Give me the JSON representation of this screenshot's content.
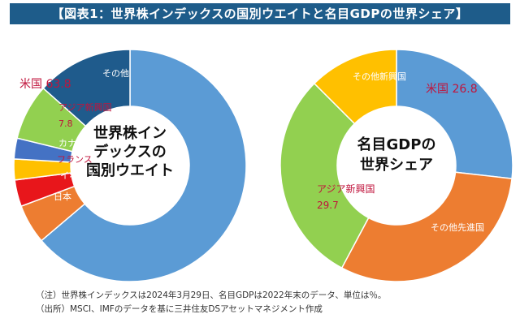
{
  "title": "【図表1：世界株インデックスの国別ウエイトと名目GDPの世界シェア】",
  "colors": {
    "title_bg": "#1e5c8a",
    "blue": "#5b9bd5",
    "orange": "#ed7d31",
    "red": "#e8161b",
    "yellow": "#ffc000",
    "navy": "#4472c4",
    "green": "#92d050",
    "dark_blue": "#1f5b8c",
    "label_red": "#c0143c"
  },
  "chart_data": [
    {
      "type": "pie",
      "title": "世界株インデックスの国別ウエイト",
      "title_lines": [
        "世界株イン",
        "デックスの",
        "国別ウエイト"
      ],
      "unit": "%",
      "slices": [
        {
          "name": "米国",
          "value": 63.8,
          "color": "#5b9bd5",
          "label": "米国 63.8"
        },
        {
          "name": "日本",
          "value": 5.5,
          "color": "#ed7d31",
          "label": "日本"
        },
        {
          "name": "イギリス",
          "value": 3.7,
          "color": "#e8161b",
          "label": "イギリス"
        },
        {
          "name": "フランス",
          "value": 2.9,
          "color": "#ffc000",
          "label": "フランス"
        },
        {
          "name": "カナダ",
          "value": 2.9,
          "color": "#4472c4",
          "label": "カナダ"
        },
        {
          "name": "アジア新興国",
          "value": 7.8,
          "color": "#92d050",
          "label": "アジア新興国",
          "value_label": "7.8"
        },
        {
          "name": "その他",
          "value": 13.4,
          "color": "#1f5b8c",
          "label": "その他"
        }
      ]
    },
    {
      "type": "pie",
      "title": "名目GDPの世界シェア",
      "title_lines": [
        "名目GDPの",
        "世界シェア"
      ],
      "unit": "%",
      "slices": [
        {
          "name": "米国",
          "value": 26.8,
          "color": "#5b9bd5",
          "label": "米国 26.8"
        },
        {
          "name": "その他先進国",
          "value": 31.0,
          "color": "#ed7d31",
          "label": "その他先進国"
        },
        {
          "name": "アジア新興国",
          "value": 29.7,
          "color": "#92d050",
          "label": "アジア新興国",
          "value_label": "29.7"
        },
        {
          "name": "その他新興国",
          "value": 12.5,
          "color": "#ffc000",
          "label": "その他新興国"
        }
      ]
    }
  ],
  "notes": [
    "（注）世界株インデックスは2024年3月29日、名目GDPは2022年末のデータ、単位は％。",
    "（出所）MSCI、IMFのデータを基に三井住友DSアセットマネジメント作成"
  ]
}
